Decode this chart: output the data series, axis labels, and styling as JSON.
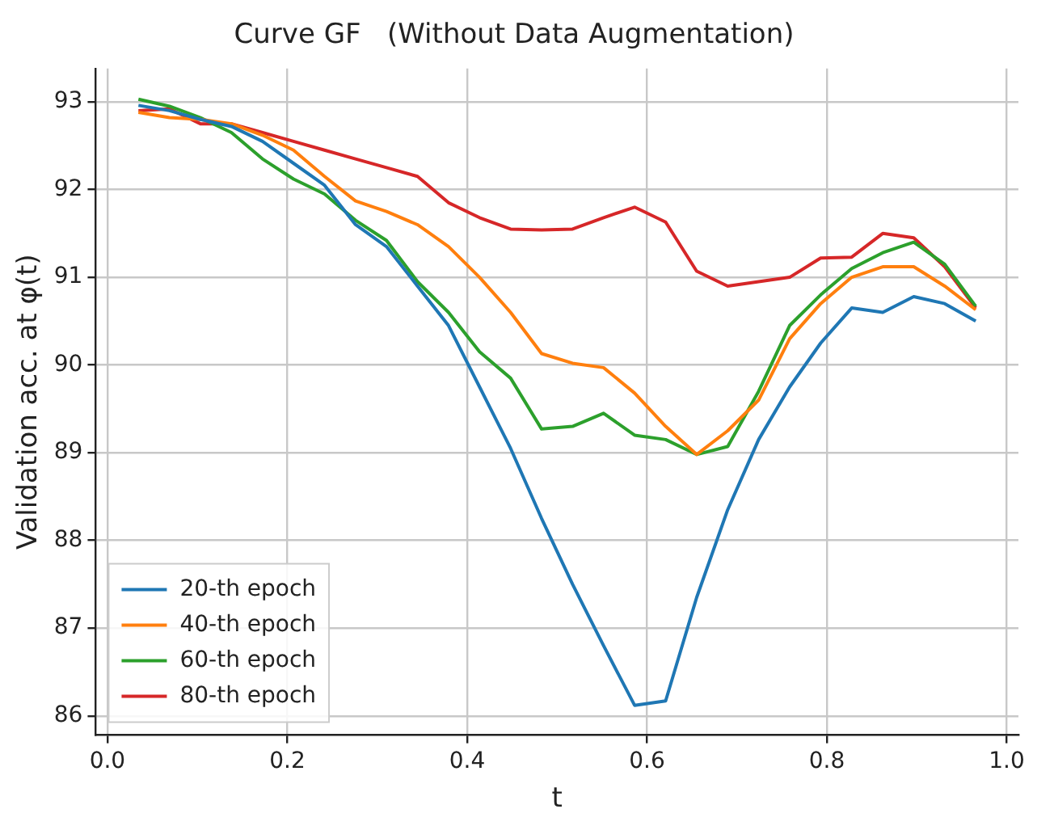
{
  "chart_data": {
    "type": "line",
    "title": "Curve GF   (Without Data Augmentation)",
    "xlabel": "t",
    "ylabel": "Validation acc. at φ(t)",
    "x": [
      0.0345,
      0.069,
      0.1034,
      0.1379,
      0.1724,
      0.2069,
      0.2414,
      0.2759,
      0.3103,
      0.3448,
      0.3793,
      0.4138,
      0.4483,
      0.4828,
      0.5172,
      0.5517,
      0.5862,
      0.6207,
      0.6552,
      0.6897,
      0.7241,
      0.7586,
      0.7931,
      0.8276,
      0.8621,
      0.8966,
      0.931,
      0.9655
    ],
    "series": [
      {
        "name": "20-th epoch",
        "color": "#1f77b4",
        "values": [
          92.96,
          92.9,
          92.8,
          92.72,
          92.55,
          92.3,
          92.05,
          91.6,
          91.35,
          90.9,
          90.45,
          89.75,
          89.05,
          88.25,
          87.5,
          86.8,
          86.12,
          86.17,
          87.35,
          88.35,
          89.15,
          89.75,
          90.25,
          90.65,
          90.6,
          90.78,
          90.7,
          90.5
        ]
      },
      {
        "name": "40-th epoch",
        "color": "#ff7f0e",
        "values": [
          92.88,
          92.82,
          92.8,
          92.75,
          92.62,
          92.45,
          92.15,
          91.87,
          91.75,
          91.6,
          91.35,
          91.0,
          90.6,
          90.13,
          90.02,
          89.97,
          89.68,
          89.3,
          88.98,
          89.25,
          89.6,
          90.3,
          90.7,
          91.0,
          91.12,
          91.12,
          90.9,
          90.63
        ]
      },
      {
        "name": "60-th epoch",
        "color": "#2ca02c",
        "values": [
          93.03,
          92.95,
          92.82,
          92.65,
          92.35,
          92.12,
          91.95,
          91.65,
          91.42,
          90.95,
          90.6,
          90.15,
          89.85,
          89.27,
          89.3,
          89.45,
          89.2,
          89.15,
          88.98,
          89.07,
          89.7,
          90.45,
          90.8,
          91.1,
          91.28,
          91.4,
          91.15,
          90.67
        ]
      },
      {
        "name": "80-th epoch",
        "color": "#d62728",
        "values": [
          92.9,
          92.92,
          92.75,
          92.75,
          92.65,
          92.55,
          92.45,
          92.35,
          92.25,
          92.15,
          91.85,
          91.68,
          91.55,
          91.54,
          91.55,
          91.68,
          91.8,
          91.63,
          91.07,
          90.9,
          90.95,
          91.0,
          91.22,
          91.23,
          91.5,
          91.45,
          91.12,
          90.65
        ]
      }
    ],
    "xlim": [
      -0.013,
      1.013
    ],
    "ylim": [
      85.78,
      93.38
    ],
    "xticks": [
      {
        "value": 0,
        "label": "0.0"
      },
      {
        "value": 0.2,
        "label": "0.2"
      },
      {
        "value": 0.4,
        "label": "0.4"
      },
      {
        "value": 0.6,
        "label": "0.6"
      },
      {
        "value": 0.8,
        "label": "0.8"
      },
      {
        "value": 1,
        "label": "1.0"
      }
    ],
    "yticks": [
      86,
      87,
      88,
      89,
      90,
      91,
      92,
      93
    ],
    "grid": true,
    "legend": "bottom left",
    "marker": "none",
    "line_style": "solid"
  }
}
